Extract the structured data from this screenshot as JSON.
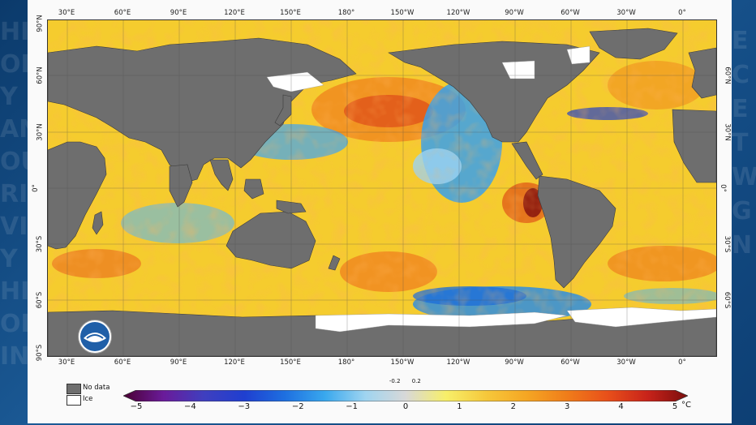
{
  "map": {
    "lon_ticks_top": [
      "30°E",
      "60°E",
      "90°E",
      "120°E",
      "150°E",
      "180°",
      "150°W",
      "120°W",
      "90°W",
      "60°W",
      "30°W",
      "0°"
    ],
    "lon_ticks_bottom": [
      "30°E",
      "60°E",
      "90°E",
      "120°E",
      "150°E",
      "180°",
      "150°W",
      "120°W",
      "90°W",
      "60°W",
      "30°W",
      "0°"
    ],
    "lat_ticks_left": [
      "90°N",
      "60°N",
      "30°N",
      "0°",
      "30°S",
      "60°S",
      "90°S"
    ],
    "lat_ticks_right": [
      "60°N",
      "30°N",
      "0°",
      "30°S",
      "60°S"
    ]
  },
  "legend": {
    "no_data_label": "No data",
    "ice_label": "Ice",
    "no_data_color": "#6e6e6e",
    "ice_color": "#ffffff"
  },
  "colorbar": {
    "ticks": [
      "−5",
      "−4",
      "−3",
      "−2",
      "−1",
      "0",
      "1",
      "2",
      "3",
      "4",
      "5"
    ],
    "tick_values": [
      -5,
      -4,
      -3,
      -2,
      -1,
      0,
      1,
      2,
      3,
      4,
      5
    ],
    "small_ticks": [
      "-0.2",
      "0.2"
    ],
    "small_tick_values": [
      -0.2,
      0.2
    ],
    "unit": "°C",
    "stops": [
      "#4b0033",
      "#6a1b9a",
      "#3f3fbf",
      "#1f3fd0",
      "#1e6fe0",
      "#39a8ee",
      "#9fd4f0",
      "#d8d8d8",
      "#f7ef6a",
      "#f6c83b",
      "#f5a623",
      "#f07d1a",
      "#e8501a",
      "#c8231a",
      "#7a0d0d"
    ]
  },
  "logo": {
    "name": "noaa-logo"
  }
}
